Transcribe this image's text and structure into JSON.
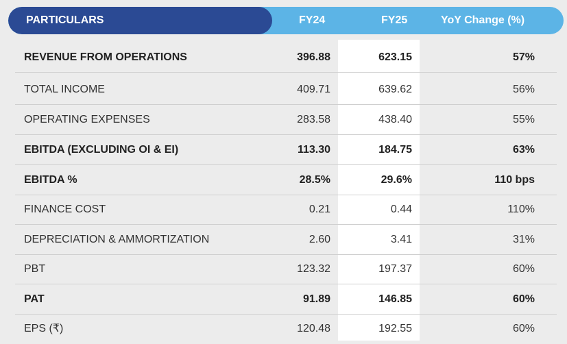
{
  "header": {
    "particulars": "PARTICULARS",
    "fy24": "FY24",
    "fy25": "FY25",
    "yoy": "YoY Change (%)"
  },
  "rows": [
    {
      "label": "REVENUE FROM OPERATIONS",
      "fy24": "396.88",
      "fy25": "623.15",
      "yoy": "57%",
      "bold": true
    },
    {
      "label": "TOTAL INCOME",
      "fy24": "409.71",
      "fy25": "639.62",
      "yoy": "56%",
      "bold": false
    },
    {
      "label": "OPERATING EXPENSES",
      "fy24": "283.58",
      "fy25": "438.40",
      "yoy": "55%",
      "bold": false
    },
    {
      "label": "EBITDA (EXCLUDING OI & EI)",
      "fy24": "113.30",
      "fy25": "184.75",
      "yoy": "63%",
      "bold": true
    },
    {
      "label": "EBITDA %",
      "fy24": "28.5%",
      "fy25": "29.6%",
      "yoy": "110 bps",
      "bold": true
    },
    {
      "label": "FINANCE COST",
      "fy24": "0.21",
      "fy25": "0.44",
      "yoy": "110%",
      "bold": false
    },
    {
      "label": "DEPRECIATION & AMMORTIZATION",
      "fy24": "2.60",
      "fy25": "3.41",
      "yoy": "31%",
      "bold": false
    },
    {
      "label": "PBT",
      "fy24": "123.32",
      "fy25": "197.37",
      "yoy": "60%",
      "bold": false
    },
    {
      "label": "PAT",
      "fy24": "91.89",
      "fy25": "146.85",
      "yoy": "60%",
      "bold": true
    },
    {
      "label": "EPS (₹)",
      "fy24": "120.48",
      "fy25": "192.55",
      "yoy": "60%",
      "bold": false
    }
  ],
  "colors": {
    "header_dark": "#2b4a94",
    "header_light": "#5cb4e6",
    "background": "#ececec",
    "highlight_column": "#ffffff"
  }
}
